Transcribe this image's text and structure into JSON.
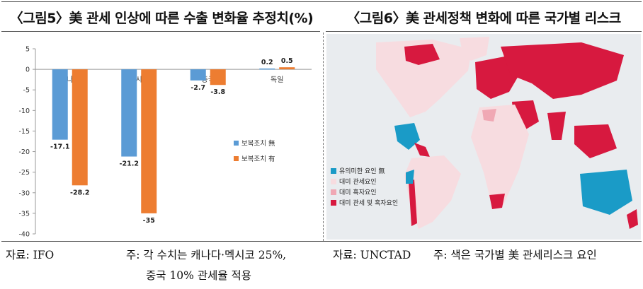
{
  "left_panel": {
    "title": "〈그림5〉美 관세 인상에 따른 수출 변화율 추정치(%)"
  },
  "right_panel": {
    "title": "〈그림6〉美 관세정책 변화에 따른 국가별 리스크"
  },
  "chart_data": {
    "type": "bar",
    "categories": [
      "캐나다",
      "멕시코",
      "중국",
      "독일"
    ],
    "series": [
      {
        "name": "보복조치 無",
        "color": "#5b9bd5",
        "values": [
          -17.1,
          -21.2,
          -2.7,
          0.2
        ],
        "labels": [
          "-17.1",
          "-21.2",
          "-2.7",
          "0.2"
        ]
      },
      {
        "name": "보복조치 有",
        "color": "#ed7d31",
        "values": [
          -28.2,
          -35,
          -3.8,
          0.5
        ],
        "labels": [
          "-28.2",
          "-35",
          "-3.8",
          "0.5"
        ]
      }
    ],
    "yticks": [
      "5",
      "0",
      "-5",
      "-10",
      "-15",
      "-20",
      "-25",
      "-30",
      "-35",
      "-40"
    ],
    "ylim": [
      -40,
      5
    ],
    "grid": false,
    "legend_position": "right"
  },
  "map": {
    "background": "#e9ecef",
    "legend": [
      {
        "label": "유의미한 요인 無",
        "color": "#1a9bc7"
      },
      {
        "label": "대미 관세요인",
        "color": "#f7dce0"
      },
      {
        "label": "대미 흑자요인",
        "color": "#f0a8b4"
      },
      {
        "label": "대미 관세 및 흑자요인",
        "color": "#d7193f"
      }
    ]
  },
  "captions": {
    "left_source": "자료: IFO",
    "left_note_1": "주: 각 수치는 캐나다·멕시코 25%,",
    "left_note_2": "중국 10% 관세율 적용",
    "right_source": "자료: UNCTAD",
    "right_note": "주: 색은 국가별 美 관세리스크 요인"
  }
}
